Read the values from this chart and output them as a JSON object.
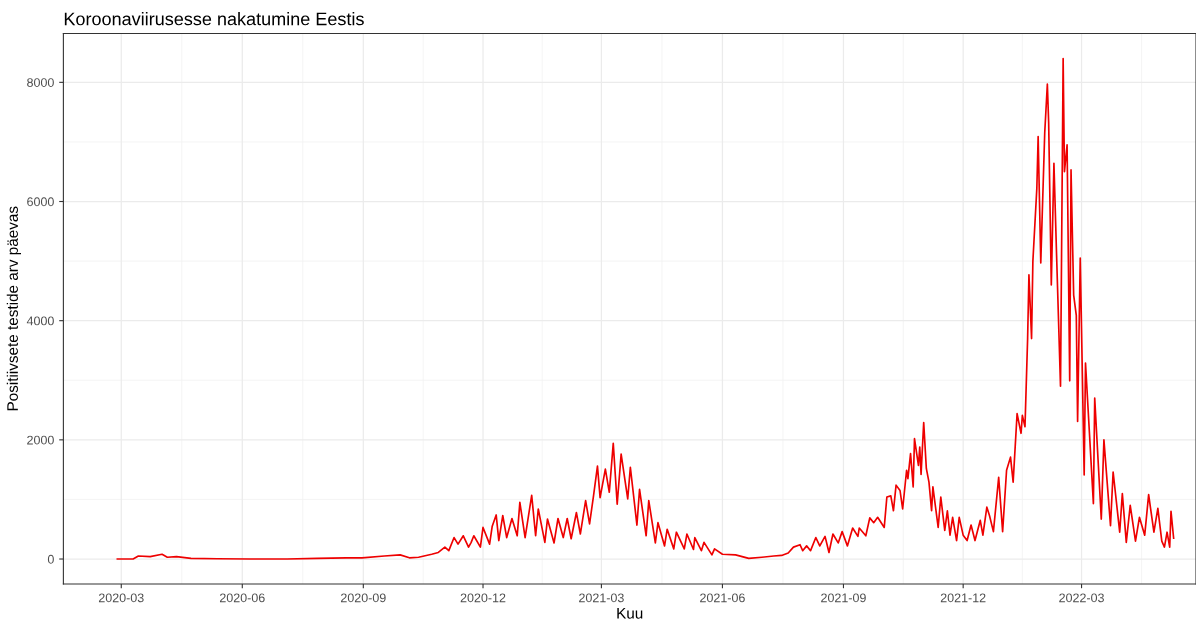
{
  "chart_data": {
    "type": "line",
    "title": "Koroonaviirusesse nakatumine Eestis",
    "xlabel": "Kuu",
    "ylabel": "Positiivsete testide arv päevas",
    "x": [
      "2020-02-27",
      "2020-03-10",
      "2020-03-14",
      "2020-03-23",
      "2020-04-01",
      "2020-04-05",
      "2020-04-12",
      "2020-04-23",
      "2020-05-13",
      "2020-06-07",
      "2020-07-05",
      "2020-07-28",
      "2020-08-19",
      "2020-08-31",
      "2020-09-17",
      "2020-09-29",
      "2020-10-06",
      "2020-10-13",
      "2020-10-23",
      "2020-10-28",
      "2020-11-02",
      "2020-11-05",
      "2020-11-09",
      "2020-11-12",
      "2020-11-16",
      "2020-11-20",
      "2020-11-22",
      "2020-11-24",
      "2020-11-29",
      "2020-12-01",
      "2020-12-06",
      "2020-12-08",
      "2020-12-11",
      "2020-12-13",
      "2020-12-16",
      "2020-12-19",
      "2020-12-23",
      "2020-12-27",
      "2020-12-29",
      "2021-01-02",
      "2021-01-07",
      "2021-01-10",
      "2021-01-12",
      "2021-01-17",
      "2021-01-19",
      "2021-01-24",
      "2021-01-27",
      "2021-01-31",
      "2021-02-03",
      "2021-02-06",
      "2021-02-10",
      "2021-02-13",
      "2021-02-17",
      "2021-02-20",
      "2021-02-23",
      "2021-02-26",
      "2021-02-28",
      "2021-03-04",
      "2021-03-07",
      "2021-03-10",
      "2021-03-13",
      "2021-03-16",
      "2021-03-21",
      "2021-03-23",
      "2021-03-28",
      "2021-03-30",
      "2021-04-04",
      "2021-04-06",
      "2021-04-11",
      "2021-04-13",
      "2021-04-18",
      "2021-04-20",
      "2021-04-25",
      "2021-04-27",
      "2021-05-03",
      "2021-05-05",
      "2021-05-10",
      "2021-05-11",
      "2021-05-16",
      "2021-05-18",
      "2021-05-24",
      "2021-05-26",
      "2021-06-01",
      "2021-06-11",
      "2021-06-21",
      "2021-07-01",
      "2021-07-10",
      "2021-07-16",
      "2021-07-21",
      "2021-07-25",
      "2021-07-30",
      "2021-08-01",
      "2021-08-04",
      "2021-08-07",
      "2021-08-11",
      "2021-08-14",
      "2021-08-18",
      "2021-08-21",
      "2021-08-24",
      "2021-08-28",
      "2021-08-31",
      "2021-09-04",
      "2021-09-08",
      "2021-09-12",
      "2021-09-13",
      "2021-09-18",
      "2021-09-21",
      "2021-09-24",
      "2021-09-27",
      "2021-10-02",
      "2021-10-04",
      "2021-10-07",
      "2021-10-09",
      "2021-10-11",
      "2021-10-14",
      "2021-10-16",
      "2021-10-19",
      "2021-10-20",
      "2021-10-22",
      "2021-10-24",
      "2021-10-25",
      "2021-10-28",
      "2021-10-29",
      "2021-10-30",
      "2021-11-01",
      "2021-11-03",
      "2021-11-05",
      "2021-11-07",
      "2021-11-08",
      "2021-11-12",
      "2021-11-14",
      "2021-11-17",
      "2021-11-19",
      "2021-11-21",
      "2021-11-23",
      "2021-11-26",
      "2021-11-28",
      "2021-12-01",
      "2021-12-04",
      "2021-12-07",
      "2021-12-10",
      "2021-12-14",
      "2021-12-16",
      "2021-12-19",
      "2021-12-21",
      "2021-12-24",
      "2021-12-28",
      "2021-12-31",
      "2022-01-03",
      "2022-01-06",
      "2022-01-08",
      "2022-01-11",
      "2022-01-14",
      "2022-01-15",
      "2022-01-17",
      "2022-01-19",
      "2022-01-20",
      "2022-01-22",
      "2022-01-23",
      "2022-01-26",
      "2022-01-27",
      "2022-01-29",
      "2022-02-01",
      "2022-02-03",
      "2022-02-04",
      "2022-02-06",
      "2022-02-08",
      "2022-02-10",
      "2022-02-13",
      "2022-02-15",
      "2022-02-16",
      "2022-02-18",
      "2022-02-20",
      "2022-02-21",
      "2022-02-23",
      "2022-02-25",
      "2022-02-26",
      "2022-02-28",
      "2022-03-03",
      "2022-03-04",
      "2022-03-10",
      "2022-03-11",
      "2022-03-16",
      "2022-03-18",
      "2022-03-23",
      "2022-03-25",
      "2022-03-30",
      "2022-04-01",
      "2022-04-04",
      "2022-04-07",
      "2022-04-11",
      "2022-04-14",
      "2022-04-18",
      "2022-04-21",
      "2022-04-25",
      "2022-04-28",
      "2022-05-01",
      "2022-05-03",
      "2022-05-05",
      "2022-05-07",
      "2022-05-08",
      "2022-05-10"
    ],
    "series": [
      {
        "color": "#ee0000",
        "values": [
          0,
          0,
          50,
          40,
          80,
          30,
          40,
          10,
          5,
          0,
          0,
          10,
          20,
          20,
          50,
          70,
          20,
          30,
          80,
          110,
          200,
          140,
          360,
          250,
          390,
          200,
          280,
          390,
          200,
          530,
          250,
          550,
          740,
          310,
          730,
          360,
          680,
          390,
          950,
          360,
          1070,
          390,
          840,
          280,
          670,
          270,
          680,
          360,
          680,
          340,
          780,
          420,
          980,
          590,
          1060,
          1560,
          1030,
          1510,
          1120,
          1940,
          920,
          1760,
          1010,
          1540,
          570,
          1170,
          390,
          980,
          270,
          610,
          220,
          500,
          170,
          450,
          170,
          420,
          160,
          360,
          140,
          280,
          70,
          170,
          80,
          70,
          10,
          30,
          50,
          60,
          100,
          200,
          240,
          140,
          220,
          140,
          360,
          220,
          380,
          110,
          420,
          270,
          460,
          220,
          520,
          380,
          520,
          390,
          690,
          610,
          700,
          530,
          1040,
          1060,
          810,
          1240,
          1150,
          840,
          1490,
          1350,
          1770,
          1210,
          2020,
          1570,
          1880,
          1420,
          2290,
          1520,
          1290,
          810,
          1210,
          530,
          1040,
          480,
          810,
          400,
          700,
          310,
          700,
          400,
          310,
          570,
          310,
          650,
          400,
          870,
          730,
          460,
          1370,
          460,
          1490,
          1710,
          1290,
          2440,
          2110,
          2410,
          2220,
          3700,
          4770,
          3700,
          5000,
          6220,
          7090,
          4970,
          7150,
          7970,
          7320,
          4600,
          6640,
          5110,
          2900,
          8400,
          6500,
          6950,
          2990,
          6530,
          4430,
          4090,
          2310,
          5050,
          1410,
          3290,
          930,
          2700,
          670,
          2000,
          560,
          1460,
          450,
          1100,
          280,
          900,
          300,
          700,
          400,
          1080,
          450,
          850,
          300,
          200,
          450,
          200,
          800,
          350
        ]
      }
    ],
    "xlim": [
      "2020-01-17",
      "2022-05-27"
    ],
    "ylim": [
      -420,
      8820
    ],
    "xticks": [
      {
        "value": "2020-03-01",
        "label": "2020-03"
      },
      {
        "value": "2020-06-01",
        "label": "2020-06"
      },
      {
        "value": "2020-09-01",
        "label": "2020-09"
      },
      {
        "value": "2020-12-01",
        "label": "2020-12"
      },
      {
        "value": "2021-03-01",
        "label": "2021-03"
      },
      {
        "value": "2021-06-01",
        "label": "2021-06"
      },
      {
        "value": "2021-09-01",
        "label": "2021-09"
      },
      {
        "value": "2021-12-01",
        "label": "2021-12"
      },
      {
        "value": "2022-03-01",
        "label": "2022-03"
      }
    ],
    "yticks": [
      0,
      2000,
      4000,
      6000,
      8000
    ],
    "grid": true,
    "legend": false,
    "marker": "none",
    "line_style": "solid"
  }
}
